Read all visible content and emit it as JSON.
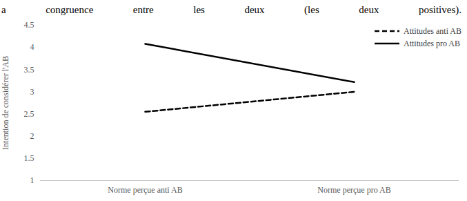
{
  "chart_data": {
    "type": "line",
    "annotations": [
      "a congruence entre les deux (les deux positives)."
    ],
    "y_label": "Intention de considérer l'AB",
    "categories": [
      "Norme perçue anti AB",
      "Norme perçue pro AB"
    ],
    "series": [
      {
        "name": "Attitudes anti AB",
        "color": "#000000",
        "line_style": "dashed",
        "values": [
          2.55,
          3.0
        ]
      },
      {
        "name": "Attitudes pro AB",
        "color": "#000000",
        "line_style": "solid",
        "values": [
          4.08,
          3.22
        ]
      }
    ],
    "ylim": [
      1,
      4.5
    ],
    "yticks": [
      1,
      1.5,
      2,
      2.5,
      3,
      3.5,
      4,
      4.5
    ],
    "grid": false,
    "legend": "top-right"
  }
}
